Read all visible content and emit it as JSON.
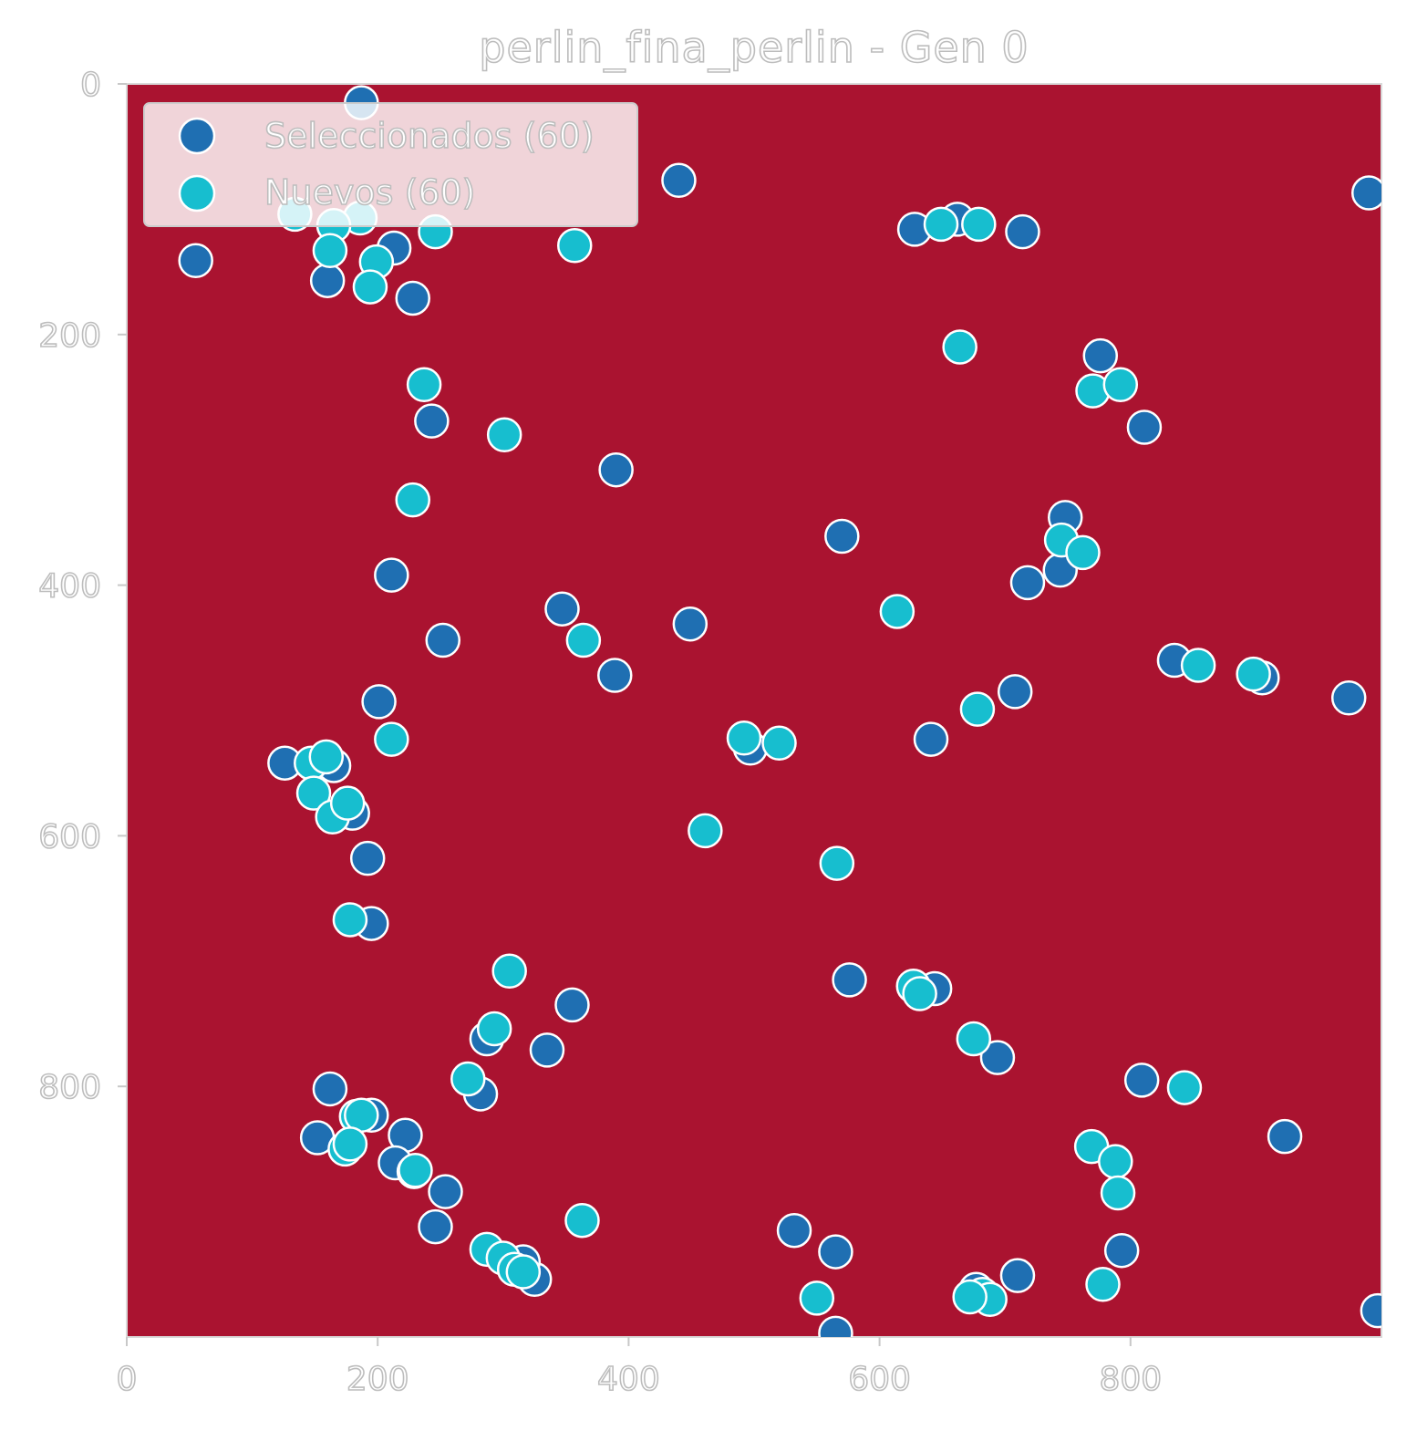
{
  "chart_data": {
    "type": "scatter",
    "title": "perlin_fina_perlin - Gen 0",
    "xlabel": "",
    "ylabel": "",
    "xlim": [
      0,
      1000
    ],
    "ylim": [
      1000,
      0
    ],
    "y_inverted": true,
    "x_ticks": [
      0,
      200,
      400,
      600,
      800
    ],
    "y_ticks": [
      0,
      200,
      400,
      600,
      800
    ],
    "grid": false,
    "legend_position": "top-left",
    "background": "perlin noise heatmap, colormap RdYlGn (red = low, green = high)",
    "colormap": [
      "#a50026",
      "#d73027",
      "#f46d43",
      "#fdae61",
      "#fee08b",
      "#f8f7b5",
      "#d9ef8b",
      "#a6d96a",
      "#66bd63",
      "#1a9850",
      "#006837"
    ],
    "series": [
      {
        "name": "Seleccionados (60)",
        "color": "#1f6fb2",
        "points": [
          [
            187,
            15
          ],
          [
            440,
            77
          ],
          [
            990,
            87
          ],
          [
            55,
            141
          ],
          [
            213,
            131
          ],
          [
            160,
            157
          ],
          [
            228,
            171
          ],
          [
            628,
            116
          ],
          [
            662,
            108
          ],
          [
            714,
            118
          ],
          [
            776,
            217
          ],
          [
            811,
            274
          ],
          [
            243,
            269
          ],
          [
            390,
            308
          ],
          [
            211,
            392
          ],
          [
            570,
            361
          ],
          [
            748,
            346
          ],
          [
            744,
            388
          ],
          [
            718,
            398
          ],
          [
            347,
            419
          ],
          [
            449,
            431
          ],
          [
            252,
            444
          ],
          [
            389,
            472
          ],
          [
            835,
            460
          ],
          [
            905,
            474
          ],
          [
            974,
            490
          ],
          [
            708,
            485
          ],
          [
            201,
            493
          ],
          [
            497,
            530
          ],
          [
            641,
            523
          ],
          [
            126,
            542
          ],
          [
            165,
            544
          ],
          [
            180,
            582
          ],
          [
            192,
            618
          ],
          [
            195,
            670
          ],
          [
            576,
            715
          ],
          [
            644,
            722
          ],
          [
            355,
            735
          ],
          [
            287,
            762
          ],
          [
            335,
            771
          ],
          [
            694,
            777
          ],
          [
            809,
            795
          ],
          [
            162,
            802
          ],
          [
            282,
            806
          ],
          [
            195,
            823
          ],
          [
            152,
            841
          ],
          [
            222,
            839
          ],
          [
            214,
            861
          ],
          [
            254,
            884
          ],
          [
            246,
            912
          ],
          [
            532,
            915
          ],
          [
            565,
            932
          ],
          [
            325,
            954
          ],
          [
            710,
            951
          ],
          [
            793,
            931
          ],
          [
            677,
            962
          ],
          [
            923,
            840
          ],
          [
            565,
            997
          ],
          [
            997,
            979
          ],
          [
            316,
            940
          ]
        ]
      },
      {
        "name": "Nuevos (60)",
        "color": "#17becf",
        "points": [
          [
            134,
            104
          ],
          [
            186,
            107
          ],
          [
            165,
            113
          ],
          [
            246,
            118
          ],
          [
            162,
            133
          ],
          [
            199,
            142
          ],
          [
            194,
            162
          ],
          [
            357,
            129
          ],
          [
            649,
            112
          ],
          [
            679,
            112
          ],
          [
            664,
            210
          ],
          [
            770,
            245
          ],
          [
            792,
            240
          ],
          [
            237,
            240
          ],
          [
            301,
            280
          ],
          [
            228,
            332
          ],
          [
            745,
            364
          ],
          [
            762,
            374
          ],
          [
            614,
            421
          ],
          [
            364,
            444
          ],
          [
            854,
            464
          ],
          [
            898,
            471
          ],
          [
            678,
            499
          ],
          [
            492,
            522
          ],
          [
            520,
            526
          ],
          [
            211,
            523
          ],
          [
            147,
            542
          ],
          [
            159,
            537
          ],
          [
            149,
            566
          ],
          [
            164,
            585
          ],
          [
            176,
            574
          ],
          [
            178,
            667
          ],
          [
            461,
            596
          ],
          [
            566,
            622
          ],
          [
            305,
            708
          ],
          [
            627,
            720
          ],
          [
            632,
            726
          ],
          [
            675,
            762
          ],
          [
            293,
            754
          ],
          [
            272,
            794
          ],
          [
            843,
            801
          ],
          [
            183,
            824
          ],
          [
            174,
            850
          ],
          [
            187,
            823
          ],
          [
            229,
            868
          ],
          [
            769,
            848
          ],
          [
            788,
            860
          ],
          [
            790,
            885
          ],
          [
            363,
            907
          ],
          [
            287,
            930
          ],
          [
            300,
            937
          ],
          [
            309,
            946
          ],
          [
            778,
            958
          ],
          [
            550,
            969
          ],
          [
            682,
            966
          ],
          [
            688,
            970
          ],
          [
            316,
            948
          ],
          [
            230,
            867
          ],
          [
            178,
            846
          ],
          [
            672,
            968
          ]
        ]
      }
    ]
  }
}
